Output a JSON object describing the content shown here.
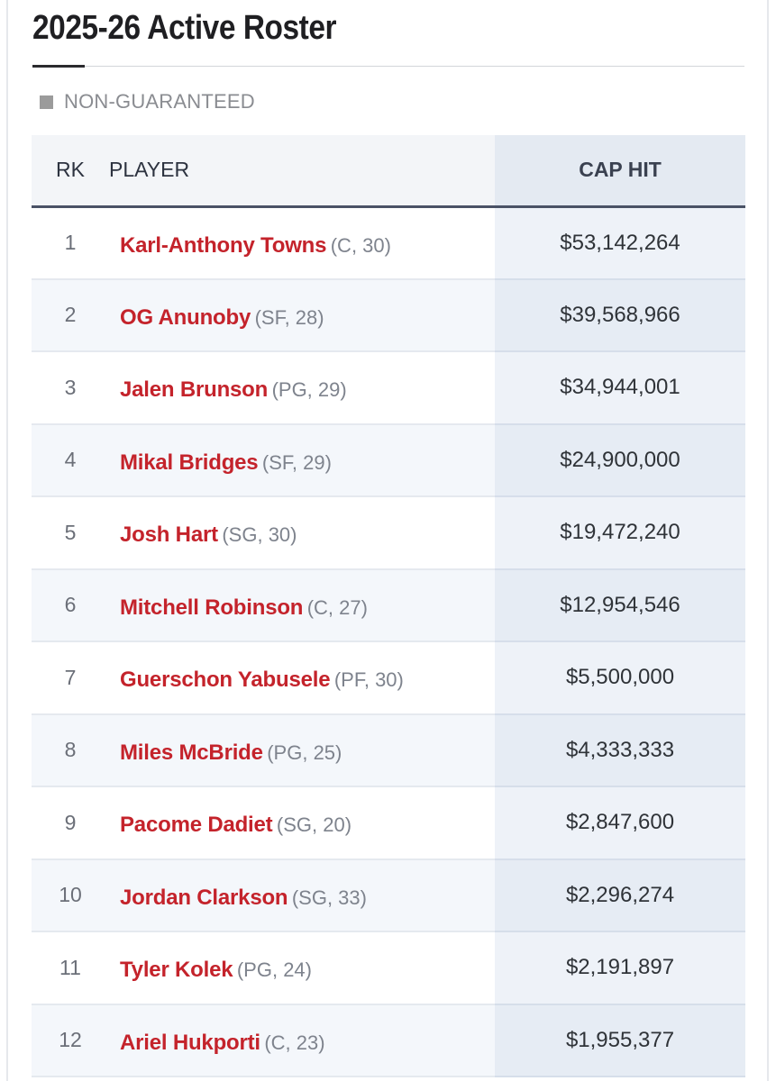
{
  "page": {
    "title": "2025-26 Active Roster",
    "legend_label": "NON-GUARANTEED"
  },
  "table": {
    "headers": {
      "rank": "RK",
      "player": "PLAYER",
      "cap_hit": "CAP HIT"
    },
    "rows": [
      {
        "rank": "1",
        "name": "Karl-Anthony Towns",
        "meta": "(C, 30)",
        "cap_hit": "$53,142,264"
      },
      {
        "rank": "2",
        "name": "OG Anunoby",
        "meta": "(SF, 28)",
        "cap_hit": "$39,568,966"
      },
      {
        "rank": "3",
        "name": "Jalen Brunson",
        "meta": "(PG, 29)",
        "cap_hit": "$34,944,001"
      },
      {
        "rank": "4",
        "name": "Mikal Bridges",
        "meta": "(SF, 29)",
        "cap_hit": "$24,900,000"
      },
      {
        "rank": "5",
        "name": "Josh Hart",
        "meta": "(SG, 30)",
        "cap_hit": "$19,472,240"
      },
      {
        "rank": "6",
        "name": "Mitchell Robinson",
        "meta": "(C, 27)",
        "cap_hit": "$12,954,546"
      },
      {
        "rank": "7",
        "name": "Guerschon Yabusele",
        "meta": "(PF, 30)",
        "cap_hit": "$5,500,000"
      },
      {
        "rank": "8",
        "name": "Miles McBride",
        "meta": "(PG, 25)",
        "cap_hit": "$4,333,333"
      },
      {
        "rank": "9",
        "name": "Pacome Dadiet",
        "meta": "(SG, 20)",
        "cap_hit": "$2,847,600"
      },
      {
        "rank": "10",
        "name": "Jordan Clarkson",
        "meta": "(SG, 33)",
        "cap_hit": "$2,296,274"
      },
      {
        "rank": "11",
        "name": "Tyler Kolek",
        "meta": "(PG, 24)",
        "cap_hit": "$2,191,897"
      },
      {
        "rank": "12",
        "name": "Ariel Hukporti",
        "meta": "(C, 23)",
        "cap_hit": "$1,955,377"
      }
    ]
  },
  "colors": {
    "player_link": "#c4232b",
    "header_rule": "#4a5266",
    "cap_column_bg": "#e4eaf2",
    "legend_swatch": "#9b9b9b"
  }
}
